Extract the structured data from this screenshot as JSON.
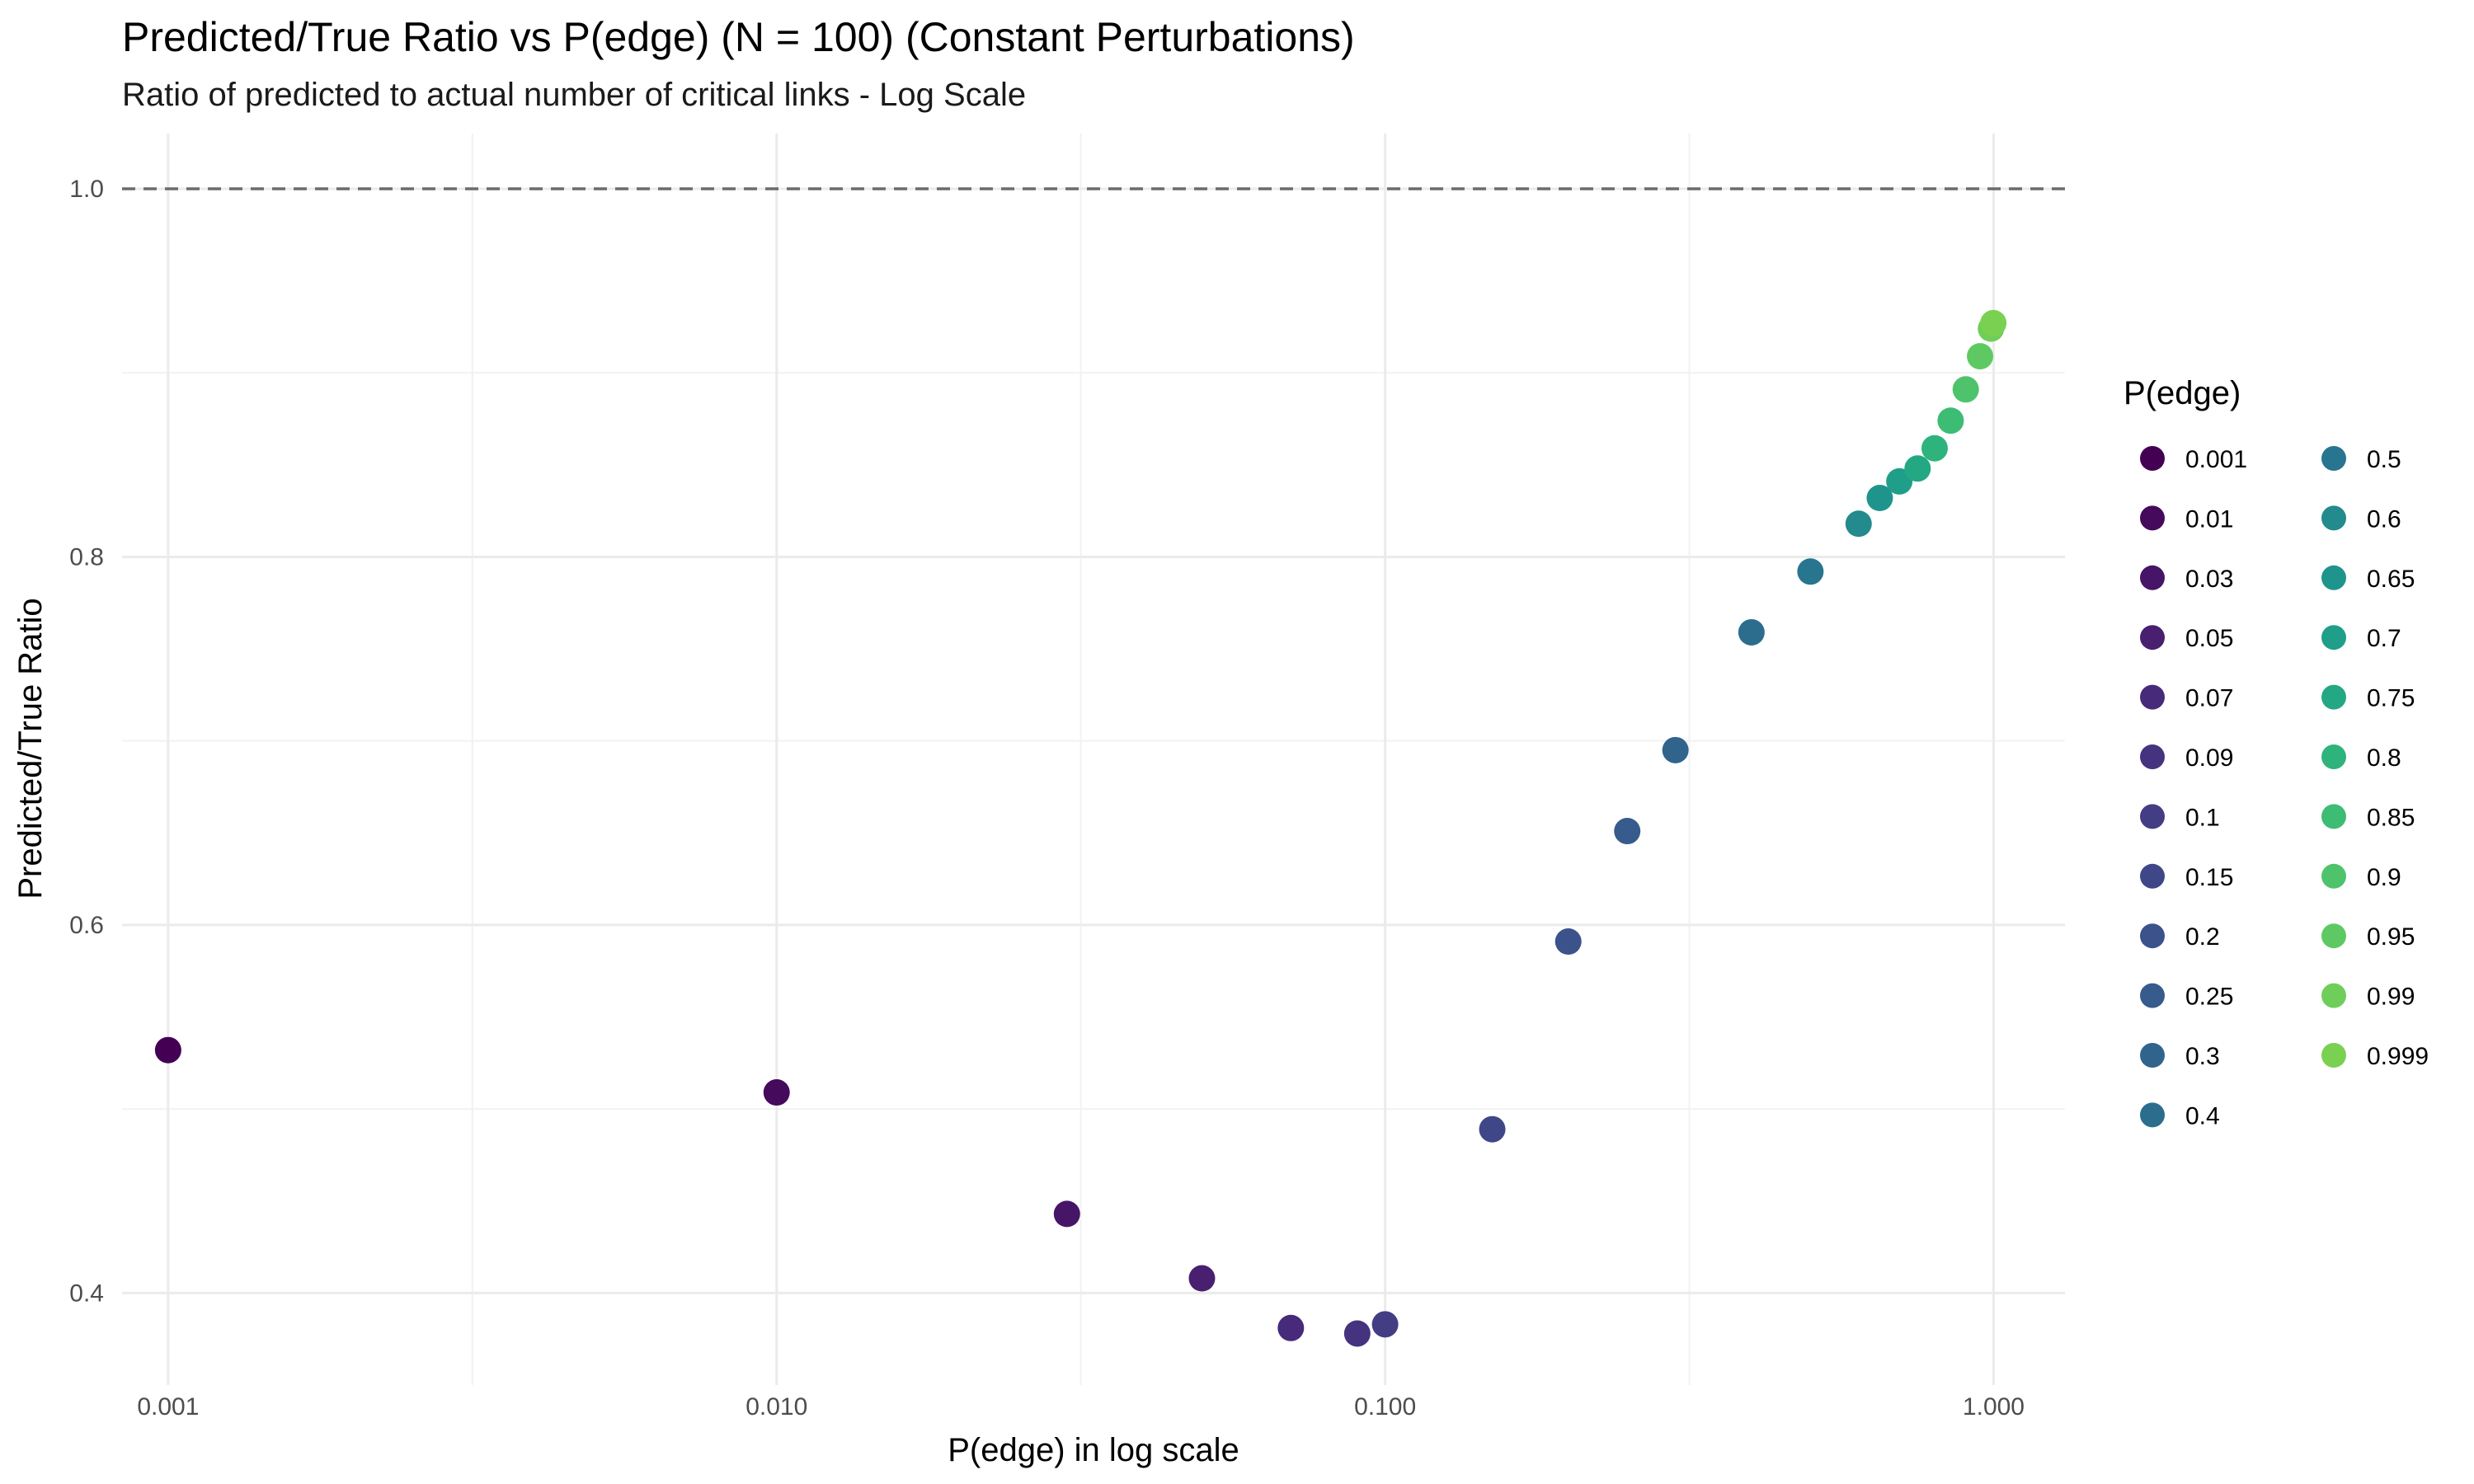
{
  "chart_data": {
    "type": "scatter",
    "title": "Predicted/True Ratio vs P(edge) (N = 100) (Constant Perturbations)",
    "subtitle": "Ratio of predicted to actual number of critical links - Log Scale",
    "xlabel": "P(edge) in log scale",
    "ylabel": "Predicted/True Ratio",
    "x_scale": "log10",
    "xlim": [
      0.00084,
      1.31
    ],
    "ylim": [
      0.35,
      1.03
    ],
    "x_ticks": [
      0.001,
      0.01,
      0.1,
      1.0
    ],
    "x_tick_labels": [
      "0.001",
      "0.010",
      "0.100",
      "1.000"
    ],
    "y_ticks": [
      0.4,
      0.6,
      0.8,
      1.0
    ],
    "y_tick_labels": [
      "0.4",
      "0.6",
      "0.8",
      "1.0"
    ],
    "reference_line": {
      "y": 1.0,
      "style": "dashed",
      "color": "#6b6b6b"
    },
    "grid": true,
    "legend": {
      "title": "P(edge)",
      "placement": "right",
      "columns": 2,
      "entries": [
        {
          "label": "0.001",
          "color": "#440154"
        },
        {
          "label": "0.01",
          "color": "#450a5c"
        },
        {
          "label": "0.03",
          "color": "#471567"
        },
        {
          "label": "0.05",
          "color": "#48206f"
        },
        {
          "label": "0.07",
          "color": "#472a79"
        },
        {
          "label": "0.09",
          "color": "#45337f"
        },
        {
          "label": "0.1",
          "color": "#433d84"
        },
        {
          "label": "0.15",
          "color": "#3f4788"
        },
        {
          "label": "0.2",
          "color": "#3b528b"
        },
        {
          "label": "0.25",
          "color": "#365b8c"
        },
        {
          "label": "0.3",
          "color": "#31648d"
        },
        {
          "label": "0.4",
          "color": "#2c6d8e"
        },
        {
          "label": "0.5",
          "color": "#27758e"
        },
        {
          "label": "0.6",
          "color": "#238a8d"
        },
        {
          "label": "0.65",
          "color": "#1f948c"
        },
        {
          "label": "0.7",
          "color": "#1f9e89"
        },
        {
          "label": "0.75",
          "color": "#24a884"
        },
        {
          "label": "0.8",
          "color": "#2eb37c"
        },
        {
          "label": "0.85",
          "color": "#3dbc74"
        },
        {
          "label": "0.9",
          "color": "#4ec36b"
        },
        {
          "label": "0.95",
          "color": "#5ec962"
        },
        {
          "label": "0.99",
          "color": "#6fce59"
        },
        {
          "label": "0.999",
          "color": "#7ad151"
        }
      ]
    },
    "points": [
      {
        "x": 0.001,
        "y": 0.532,
        "color": "#440154"
      },
      {
        "x": 0.01,
        "y": 0.509,
        "color": "#450a5c"
      },
      {
        "x": 0.03,
        "y": 0.443,
        "color": "#471567"
      },
      {
        "x": 0.05,
        "y": 0.408,
        "color": "#48206f"
      },
      {
        "x": 0.07,
        "y": 0.381,
        "color": "#472a79"
      },
      {
        "x": 0.09,
        "y": 0.378,
        "color": "#45337f"
      },
      {
        "x": 0.1,
        "y": 0.383,
        "color": "#433d84"
      },
      {
        "x": 0.15,
        "y": 0.489,
        "color": "#3f4788"
      },
      {
        "x": 0.2,
        "y": 0.591,
        "color": "#3b528b"
      },
      {
        "x": 0.25,
        "y": 0.651,
        "color": "#365b8c"
      },
      {
        "x": 0.3,
        "y": 0.695,
        "color": "#31648d"
      },
      {
        "x": 0.4,
        "y": 0.759,
        "color": "#2c6d8e"
      },
      {
        "x": 0.5,
        "y": 0.792,
        "color": "#27758e"
      },
      {
        "x": 0.6,
        "y": 0.818,
        "color": "#238a8d"
      },
      {
        "x": 0.65,
        "y": 0.832,
        "color": "#1f948c"
      },
      {
        "x": 0.7,
        "y": 0.841,
        "color": "#1f9e89"
      },
      {
        "x": 0.75,
        "y": 0.848,
        "color": "#24a884"
      },
      {
        "x": 0.8,
        "y": 0.859,
        "color": "#2eb37c"
      },
      {
        "x": 0.85,
        "y": 0.874,
        "color": "#3dbc74"
      },
      {
        "x": 0.9,
        "y": 0.891,
        "color": "#4ec36b"
      },
      {
        "x": 0.95,
        "y": 0.909,
        "color": "#5ec962"
      },
      {
        "x": 0.99,
        "y": 0.924,
        "color": "#6fce59"
      },
      {
        "x": 0.999,
        "y": 0.927,
        "color": "#7ad151"
      }
    ]
  }
}
